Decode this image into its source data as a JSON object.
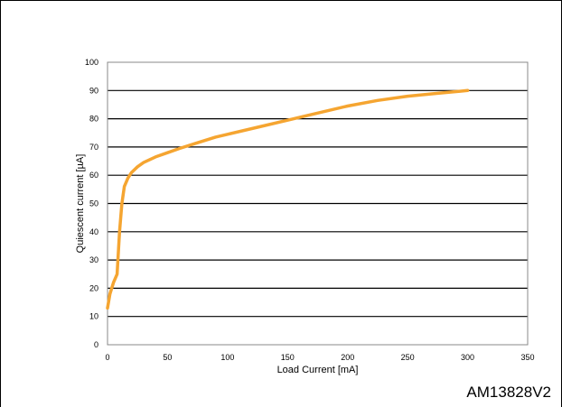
{
  "figure_id": "AM13828V2",
  "colors": {
    "curve": "#F5A531",
    "grid": "#000000",
    "plot_border": "#888888"
  },
  "chart_data": {
    "type": "line",
    "title": "",
    "xlabel": "Load Current [mA]",
    "ylabel": "Quiescent current [µA]",
    "xlim": [
      0,
      350
    ],
    "ylim": [
      0,
      100
    ],
    "xticks": [
      0,
      50,
      100,
      150,
      200,
      250,
      300,
      350
    ],
    "yticks": [
      0,
      10,
      20,
      30,
      40,
      50,
      60,
      70,
      80,
      90,
      100
    ],
    "grid": "horizontal",
    "series": [
      {
        "x": [
          0,
          2,
          5,
          8,
          10,
          12,
          14,
          17,
          20,
          25,
          30,
          40,
          50,
          60,
          75,
          90,
          100,
          125,
          150,
          175,
          200,
          225,
          250,
          275,
          300
        ],
        "y": [
          13,
          18,
          22,
          25,
          40,
          50,
          56,
          59,
          61,
          63,
          64.5,
          66.5,
          68,
          69.5,
          71.5,
          73.5,
          74.5,
          77,
          79.5,
          82,
          84.5,
          86.5,
          88,
          89,
          90
        ]
      }
    ]
  }
}
